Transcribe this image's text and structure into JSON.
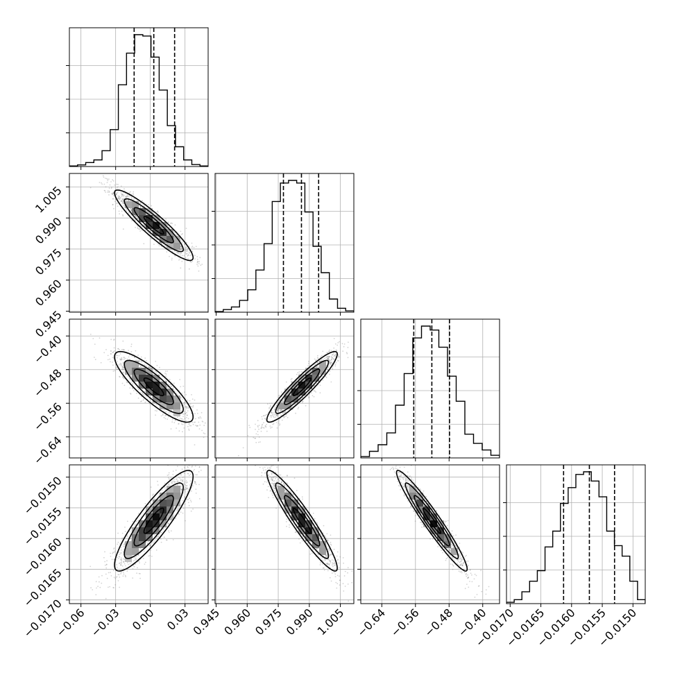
{
  "chart_data": {
    "type": "corner",
    "n_params": 4,
    "grid": true,
    "colors": {
      "line": "#000000",
      "grid": "#b0b0b0",
      "points": "#808080",
      "frame": "#000000"
    },
    "params": [
      {
        "range": [
          -0.07,
          0.05
        ],
        "ticks": [
          -0.06,
          -0.03,
          0.0,
          0.03
        ],
        "tick_labels": [
          "−0.06",
          "−0.03",
          "0.00",
          "0.03"
        ],
        "quantiles": [
          -0.014,
          0.003,
          0.021
        ],
        "mean": 0.003,
        "sd": 0.017,
        "hist": [
          0.004,
          0.012,
          0.03,
          0.05,
          0.12,
          0.28,
          0.62,
          0.86,
          1.0,
          0.99,
          0.83,
          0.58,
          0.31,
          0.15,
          0.05,
          0.015,
          0.004
        ]
      },
      {
        "range": [
          0.9445,
          1.0115
        ],
        "ticks": [
          0.945,
          0.96,
          0.975,
          0.99,
          1.005
        ],
        "tick_labels": [
          "0.945",
          "0.960",
          "0.975",
          "0.990",
          "1.005"
        ],
        "quantiles": [
          0.9775,
          0.9862,
          0.9945
        ],
        "mean": 0.9865,
        "sd": 0.0085,
        "hist": [
          0.005,
          0.02,
          0.04,
          0.09,
          0.17,
          0.32,
          0.52,
          0.84,
          0.98,
          1.0,
          0.98,
          0.76,
          0.5,
          0.3,
          0.1,
          0.03,
          0.01
        ]
      },
      {
        "range": [
          -0.69,
          -0.36
        ],
        "ticks": [
          -0.64,
          -0.56,
          -0.48,
          -0.4
        ],
        "tick_labels": [
          "−0.64",
          "−0.56",
          "−0.48",
          "−0.40"
        ],
        "quantiles": [
          -0.564,
          -0.521,
          -0.479
        ],
        "mean": -0.521,
        "sd": 0.042,
        "hist": [
          0.01,
          0.05,
          0.1,
          0.19,
          0.4,
          0.64,
          0.91,
          1.0,
          0.97,
          0.84,
          0.62,
          0.43,
          0.18,
          0.11,
          0.06,
          0.02
        ]
      },
      {
        "range": [
          -0.01706,
          -0.0148
        ],
        "ticks": [
          -0.017,
          -0.0165,
          -0.016,
          -0.0155,
          -0.015
        ],
        "tick_labels": [
          "−0.0170",
          "−0.0165",
          "−0.0160",
          "−0.0155",
          "−0.0150"
        ],
        "quantiles": [
          -0.01613,
          -0.01571,
          -0.0153
        ],
        "mean": -0.01571,
        "sd": 0.00041,
        "hist": [
          0.01,
          0.03,
          0.09,
          0.17,
          0.25,
          0.43,
          0.55,
          0.76,
          0.88,
          0.98,
          1.0,
          0.93,
          0.81,
          0.55,
          0.44,
          0.36,
          0.17,
          0.03
        ]
      }
    ],
    "correlations": {
      "1-0": -0.92,
      "2-0": -0.85,
      "2-1": 0.93,
      "3-0": 0.88,
      "3-1": -0.94,
      "3-2": -0.96
    }
  }
}
